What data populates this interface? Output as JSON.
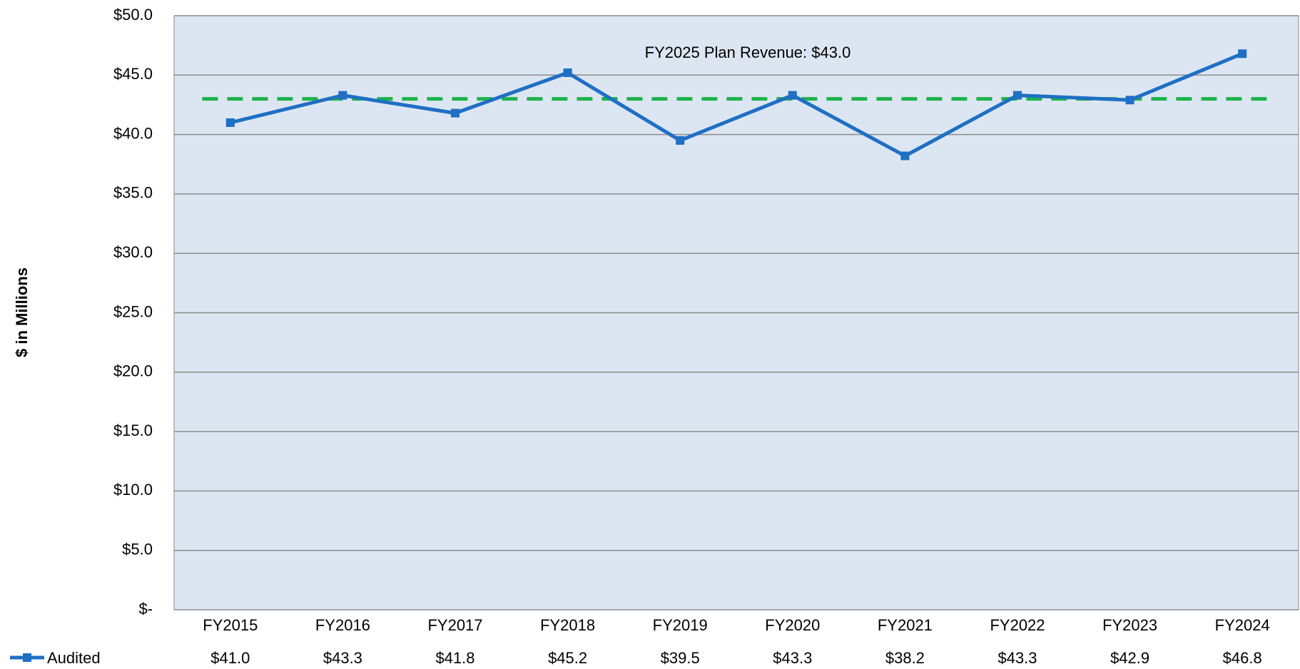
{
  "chart_data": {
    "type": "line",
    "y_label": "$ in Millions",
    "categories": [
      "FY2015",
      "FY2016",
      "FY2017",
      "FY2018",
      "FY2019",
      "FY2020",
      "FY2021",
      "FY2022",
      "FY2023",
      "FY2024"
    ],
    "series": [
      {
        "name": "Audited",
        "color": "#1f6fc4",
        "values": [
          41.0,
          43.3,
          41.8,
          45.2,
          39.5,
          43.3,
          38.2,
          43.3,
          42.9,
          46.8
        ],
        "value_labels": [
          "$41.0",
          "$43.3",
          "$41.8",
          "$45.2",
          "$39.5",
          "$43.3",
          "$38.2",
          "$43.3",
          "$42.9",
          "$46.8"
        ]
      }
    ],
    "reference_line": {
      "value": 43.0,
      "label": "FY2025 Plan Revenue: $43.0",
      "color": "#1db34a"
    },
    "ylim": [
      0,
      50
    ],
    "yticks": [
      {
        "value": 0,
        "label": "$-"
      },
      {
        "value": 5,
        "label": "$5.0"
      },
      {
        "value": 10,
        "label": "$10.0"
      },
      {
        "value": 15,
        "label": "$15.0"
      },
      {
        "value": 20,
        "label": "$20.0"
      },
      {
        "value": 25,
        "label": "$25.0"
      },
      {
        "value": 30,
        "label": "$30.0"
      },
      {
        "value": 35,
        "label": "$35.0"
      },
      {
        "value": 40,
        "label": "$40.0"
      },
      {
        "value": 45,
        "label": "$45.0"
      },
      {
        "value": 50,
        "label": "$50.0"
      }
    ],
    "grid": true
  }
}
